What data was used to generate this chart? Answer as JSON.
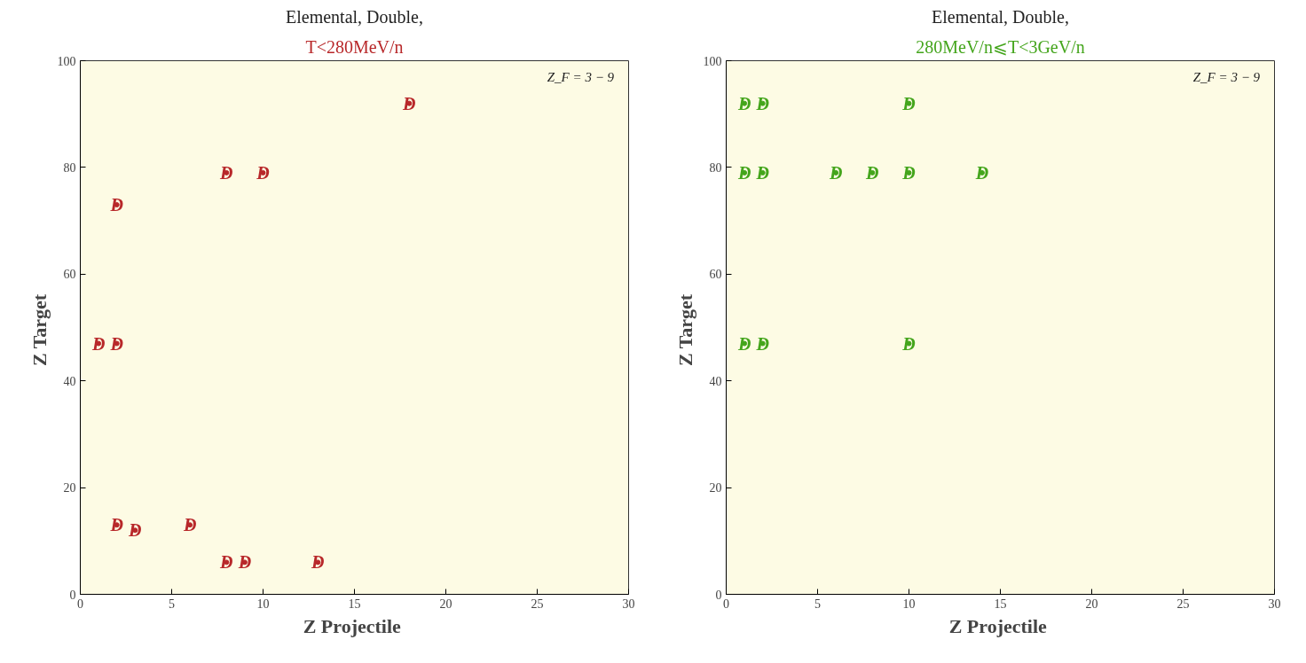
{
  "chart_data": [
    {
      "type": "scatter",
      "title": "Elemental, Double,",
      "subtitle": "T<280MeV/n",
      "xlabel": "Z  Projectile",
      "ylabel": "Z  Target",
      "xlim": [
        0,
        30
      ],
      "ylim": [
        0,
        100
      ],
      "xticks": [
        0,
        5,
        10,
        15,
        20,
        25,
        30
      ],
      "yticks": [
        0,
        20,
        40,
        60,
        80,
        100
      ],
      "annotations": [
        "Z_F = 3 − 9"
      ],
      "series": [
        {
          "color": "#b8282a",
          "x": [
            18,
            8,
            10,
            2,
            1,
            2,
            2,
            3,
            6,
            8,
            9,
            13
          ],
          "values": [
            92,
            79,
            79,
            73,
            47,
            47,
            13,
            12,
            13,
            6,
            6,
            6
          ],
          "value_labels": [
            "D",
            "D",
            "D",
            "D",
            "D",
            "D",
            "D",
            "D",
            "D",
            "D",
            "D",
            "D"
          ]
        }
      ]
    },
    {
      "type": "scatter",
      "title": "Elemental, Double,",
      "subtitle": "280MeV/n⩽T<3GeV/n",
      "xlabel": "Z  Projectile",
      "ylabel": "Z  Target",
      "xlim": [
        0,
        30
      ],
      "ylim": [
        0,
        100
      ],
      "xticks": [
        0,
        5,
        10,
        15,
        20,
        25,
        30
      ],
      "yticks": [
        0,
        20,
        40,
        60,
        80,
        100
      ],
      "annotations": [
        "Z_F = 3 − 9"
      ],
      "series": [
        {
          "color": "#44a51c",
          "x": [
            1,
            2,
            10,
            1,
            2,
            6,
            8,
            10,
            14,
            1,
            2,
            10
          ],
          "values": [
            92,
            92,
            92,
            79,
            79,
            79,
            79,
            79,
            79,
            47,
            47,
            47
          ],
          "value_labels": [
            "D",
            "D",
            "D",
            "D",
            "D",
            "D",
            "D",
            "D",
            "D",
            "D",
            "D",
            "D"
          ]
        }
      ]
    }
  ]
}
